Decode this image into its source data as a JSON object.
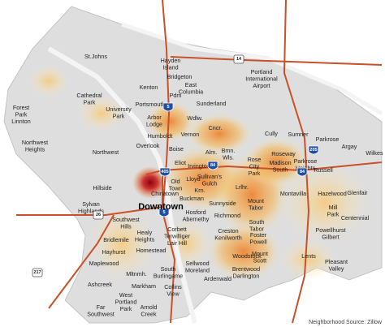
{
  "neighborhoods": [
    [
      "St.Johns"
    ],
    [
      "Hayden",
      "Island"
    ],
    [
      "Bridgeton"
    ],
    [
      "Kenton"
    ],
    [
      "East",
      "Columbia"
    ],
    [
      "Portland",
      "International",
      "Airport"
    ],
    [
      "Cathedral",
      "Park"
    ],
    [
      "Forest",
      "Park",
      "Linnton"
    ],
    [
      "University",
      "Park"
    ],
    [
      "Portsmouth"
    ],
    [
      "Pdm"
    ],
    [
      "Sunderland"
    ],
    [
      "Arbor",
      "Lodge"
    ],
    [
      "Humboldt"
    ],
    [
      "Wdlw."
    ],
    [
      "Vernon"
    ],
    [
      "Cncr."
    ],
    [
      "Overlook"
    ],
    [
      "Cully"
    ],
    [
      "Sumner"
    ],
    [
      "Parkrose"
    ],
    [
      "Argay"
    ],
    [
      "Wilkes"
    ],
    [
      "Northwest"
    ],
    [
      "Boise"
    ],
    [
      "Alm."
    ],
    [
      "Bmn.",
      "Wls."
    ],
    [
      "Roseway"
    ],
    [
      "Madison",
      "South"
    ],
    [
      "Parkrose",
      "Heights"
    ],
    [
      "Russell"
    ],
    [
      "Eliot"
    ],
    [
      "Irvington"
    ],
    [
      "Rose",
      "City",
      "Park"
    ],
    [
      "Sullivan's",
      "Gulch"
    ],
    [
      "Lloyd"
    ],
    [
      "Old",
      "Town"
    ],
    [
      "Lrlhr."
    ],
    [
      "Krn."
    ],
    [
      "Hillside"
    ],
    [
      "Chinatown"
    ],
    [
      "Buckman"
    ],
    [
      "Sunnyside"
    ],
    [
      "Mount",
      "Tabor"
    ],
    [
      "Montavilla"
    ],
    [
      "Hazelwood"
    ],
    [
      "Glenfair"
    ],
    [
      "Northwest",
      "Heights"
    ],
    [
      "Sylvan",
      "Highlands"
    ],
    [
      "Southwest",
      "Hills"
    ],
    [
      "Hosford",
      "Abernethy"
    ],
    [
      "Richmond"
    ],
    [
      "Mill",
      "Park"
    ],
    [
      "Centennial"
    ],
    [
      "Healy",
      "Heights"
    ],
    [
      "Corbett",
      "Terwilliger",
      "Lair Hill"
    ],
    [
      "South",
      "Tabor"
    ],
    [
      "Creston",
      "Kenilworth"
    ],
    [
      "Foster",
      "Powell"
    ],
    [
      "Powellhurst",
      "Gilbert"
    ],
    [
      "Bridlemile"
    ],
    [
      "Hayhurst"
    ],
    [
      "Homestead"
    ],
    [
      "Woodstock"
    ],
    [
      "Mount",
      "Scott"
    ],
    [
      "Lents"
    ],
    [
      "Sellwood",
      "Moreland"
    ],
    [
      "Brentwood",
      "Darlington"
    ],
    [
      "Maplewood"
    ],
    [
      "Mltnmh."
    ],
    [
      "South",
      "Burlingame"
    ],
    [
      "Ardenwald"
    ],
    [
      "Pleasant",
      "Valley"
    ],
    [
      "Ashcreek"
    ],
    [
      "Markham"
    ],
    [
      "Collins",
      "View"
    ],
    [
      "West",
      "Portland",
      "Park"
    ],
    [
      "Arnold",
      "Creek"
    ],
    [
      "Far",
      "Southwest"
    ]
  ],
  "downtown": "Downtown",
  "highways": [
    "5",
    "405",
    "84",
    "84",
    "205",
    "5",
    "26",
    "217",
    "14"
  ],
  "source": "Neighborhood Source: Zillow"
}
